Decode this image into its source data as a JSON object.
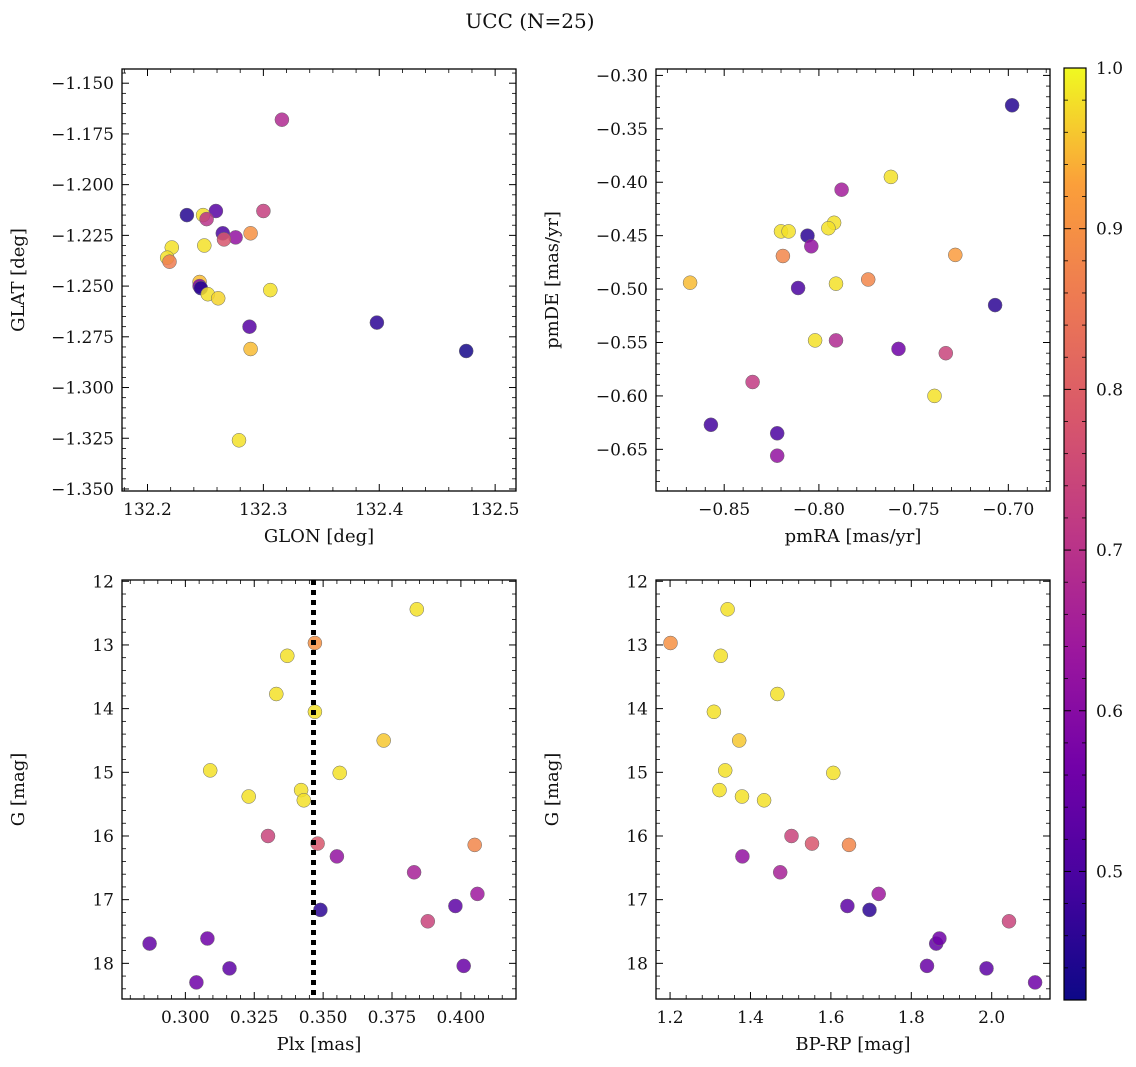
{
  "figure": {
    "title": "UCC (N=25)"
  },
  "colorbar": {
    "min": 0.42,
    "max": 1.0,
    "ticks": [
      0.5,
      0.6,
      0.7,
      0.8,
      0.9,
      1.0
    ],
    "tick_labels": [
      "0.5",
      "0.6",
      "0.7",
      "0.8",
      "0.9",
      "1.0"
    ],
    "colormap": "plasma"
  },
  "chart_data": [
    {
      "type": "scatter",
      "panel": "top-left",
      "xlabel": "GLON [deg]",
      "ylabel": "GLAT [deg]",
      "xlim": [
        132.178,
        132.518
      ],
      "ylim": [
        -1.351,
        -1.143
      ],
      "xticks": [
        132.2,
        132.3,
        132.4,
        132.5
      ],
      "xtick_labels": [
        "132.2",
        "132.3",
        "132.4",
        "132.5"
      ],
      "yticks": [
        -1.15,
        -1.175,
        -1.2,
        -1.225,
        -1.25,
        -1.275,
        -1.3,
        -1.325,
        -1.35
      ],
      "ytick_labels": [
        "−1.150",
        "−1.175",
        "−1.200",
        "−1.225",
        "−1.250",
        "−1.275",
        "−1.300",
        "−1.325",
        "−1.350"
      ],
      "points": [
        {
          "x": 132.316,
          "y": -1.168,
          "c": 0.68
        },
        {
          "x": 132.234,
          "y": -1.215,
          "c": 0.45
        },
        {
          "x": 132.259,
          "y": -1.213,
          "c": 0.52
        },
        {
          "x": 132.3,
          "y": -1.213,
          "c": 0.73
        },
        {
          "x": 132.248,
          "y": -1.215,
          "c": 0.98
        },
        {
          "x": 132.251,
          "y": -1.217,
          "c": 0.7
        },
        {
          "x": 132.265,
          "y": -1.224,
          "c": 0.5
        },
        {
          "x": 132.289,
          "y": -1.224,
          "c": 0.9
        },
        {
          "x": 132.276,
          "y": -1.226,
          "c": 0.62
        },
        {
          "x": 132.266,
          "y": -1.227,
          "c": 0.78
        },
        {
          "x": 132.221,
          "y": -1.231,
          "c": 0.98
        },
        {
          "x": 132.249,
          "y": -1.23,
          "c": 0.98
        },
        {
          "x": 132.217,
          "y": -1.236,
          "c": 0.98
        },
        {
          "x": 132.219,
          "y": -1.238,
          "c": 0.86
        },
        {
          "x": 132.245,
          "y": -1.248,
          "c": 0.95
        },
        {
          "x": 132.245,
          "y": -1.25,
          "c": 0.58
        },
        {
          "x": 132.246,
          "y": -1.251,
          "c": 0.45
        },
        {
          "x": 132.306,
          "y": -1.252,
          "c": 0.98
        },
        {
          "x": 132.252,
          "y": -1.254,
          "c": 0.98
        },
        {
          "x": 132.261,
          "y": -1.256,
          "c": 0.97
        },
        {
          "x": 132.288,
          "y": -1.27,
          "c": 0.52
        },
        {
          "x": 132.398,
          "y": -1.268,
          "c": 0.46
        },
        {
          "x": 132.475,
          "y": -1.282,
          "c": 0.43
        },
        {
          "x": 132.289,
          "y": -1.281,
          "c": 0.95
        },
        {
          "x": 132.279,
          "y": -1.326,
          "c": 0.98
        }
      ]
    },
    {
      "type": "scatter",
      "panel": "top-right",
      "xlabel": "pmRA [mas/yr]",
      "ylabel": "pmDE [mas/yr]",
      "xlim": [
        -0.886,
        -0.678
      ],
      "ylim": [
        -0.689,
        -0.294
      ],
      "xticks": [
        -0.85,
        -0.8,
        -0.75,
        -0.7
      ],
      "xtick_labels": [
        "−0.85",
        "−0.80",
        "−0.75",
        "−0.70"
      ],
      "yticks": [
        -0.3,
        -0.35,
        -0.4,
        -0.45,
        -0.5,
        -0.55,
        -0.6,
        -0.65
      ],
      "ytick_labels": [
        "−0.30",
        "−0.35",
        "−0.40",
        "−0.45",
        "−0.50",
        "−0.55",
        "−0.60",
        "−0.65"
      ],
      "points": [
        {
          "x": -0.698,
          "y": -0.328,
          "c": 0.45
        },
        {
          "x": -0.762,
          "y": -0.395,
          "c": 0.98
        },
        {
          "x": -0.788,
          "y": -0.407,
          "c": 0.65
        },
        {
          "x": -0.82,
          "y": -0.446,
          "c": 0.98
        },
        {
          "x": -0.816,
          "y": -0.446,
          "c": 0.98
        },
        {
          "x": -0.792,
          "y": -0.438,
          "c": 0.98
        },
        {
          "x": -0.795,
          "y": -0.443,
          "c": 0.98
        },
        {
          "x": -0.806,
          "y": -0.45,
          "c": 0.46
        },
        {
          "x": -0.804,
          "y": -0.46,
          "c": 0.62
        },
        {
          "x": -0.819,
          "y": -0.469,
          "c": 0.88
        },
        {
          "x": -0.728,
          "y": -0.468,
          "c": 0.92
        },
        {
          "x": -0.774,
          "y": -0.491,
          "c": 0.88
        },
        {
          "x": -0.868,
          "y": -0.494,
          "c": 0.95
        },
        {
          "x": -0.791,
          "y": -0.495,
          "c": 0.98
        },
        {
          "x": -0.811,
          "y": -0.499,
          "c": 0.5
        },
        {
          "x": -0.707,
          "y": -0.515,
          "c": 0.46
        },
        {
          "x": -0.802,
          "y": -0.548,
          "c": 0.98
        },
        {
          "x": -0.791,
          "y": -0.548,
          "c": 0.68
        },
        {
          "x": -0.758,
          "y": -0.556,
          "c": 0.56
        },
        {
          "x": -0.733,
          "y": -0.56,
          "c": 0.74
        },
        {
          "x": -0.835,
          "y": -0.587,
          "c": 0.72
        },
        {
          "x": -0.739,
          "y": -0.6,
          "c": 0.98
        },
        {
          "x": -0.857,
          "y": -0.627,
          "c": 0.49
        },
        {
          "x": -0.822,
          "y": -0.635,
          "c": 0.5
        },
        {
          "x": -0.822,
          "y": -0.656,
          "c": 0.62
        }
      ]
    },
    {
      "type": "scatter",
      "panel": "bottom-left",
      "xlabel": "Plx [mas]",
      "ylabel": "G [mag]",
      "xlim": [
        0.277,
        0.42
      ],
      "ylim": [
        18.56,
        11.98
      ],
      "y_inverted": true,
      "xticks": [
        0.275,
        0.3,
        0.325,
        0.35,
        0.375,
        0.4
      ],
      "xtick_labels": [
        "0.275",
        "0.300",
        "0.325",
        "0.350",
        "0.375",
        "0.400"
      ],
      "yticks": [
        12,
        13,
        14,
        15,
        16,
        17,
        18
      ],
      "ytick_labels": [
        "12",
        "13",
        "14",
        "15",
        "16",
        "17",
        "18"
      ],
      "vline": {
        "x": 0.3465,
        "style": "dotted"
      },
      "points": [
        {
          "x": 0.384,
          "y": 12.44,
          "c": 0.98
        },
        {
          "x": 0.347,
          "y": 12.97,
          "c": 0.9
        },
        {
          "x": 0.337,
          "y": 13.17,
          "c": 0.98
        },
        {
          "x": 0.333,
          "y": 13.77,
          "c": 0.98
        },
        {
          "x": 0.347,
          "y": 14.05,
          "c": 0.98
        },
        {
          "x": 0.372,
          "y": 14.5,
          "c": 0.96
        },
        {
          "x": 0.309,
          "y": 14.97,
          "c": 0.98
        },
        {
          "x": 0.356,
          "y": 15.01,
          "c": 0.98
        },
        {
          "x": 0.342,
          "y": 15.28,
          "c": 0.98
        },
        {
          "x": 0.323,
          "y": 15.38,
          "c": 0.98
        },
        {
          "x": 0.343,
          "y": 15.44,
          "c": 0.98
        },
        {
          "x": 0.33,
          "y": 16.0,
          "c": 0.74
        },
        {
          "x": 0.348,
          "y": 16.12,
          "c": 0.78
        },
        {
          "x": 0.405,
          "y": 16.14,
          "c": 0.88
        },
        {
          "x": 0.355,
          "y": 16.32,
          "c": 0.62
        },
        {
          "x": 0.383,
          "y": 16.57,
          "c": 0.66
        },
        {
          "x": 0.398,
          "y": 17.1,
          "c": 0.53
        },
        {
          "x": 0.406,
          "y": 16.91,
          "c": 0.64
        },
        {
          "x": 0.388,
          "y": 17.34,
          "c": 0.74
        },
        {
          "x": 0.349,
          "y": 17.16,
          "c": 0.46
        },
        {
          "x": 0.287,
          "y": 17.69,
          "c": 0.54
        },
        {
          "x": 0.308,
          "y": 17.61,
          "c": 0.56
        },
        {
          "x": 0.316,
          "y": 18.08,
          "c": 0.53
        },
        {
          "x": 0.401,
          "y": 18.04,
          "c": 0.55
        },
        {
          "x": 0.304,
          "y": 18.3,
          "c": 0.56
        }
      ]
    },
    {
      "type": "scatter",
      "panel": "bottom-right",
      "xlabel": "BP-RP [mag]",
      "ylabel": "G [mag]",
      "xlim": [
        1.165,
        2.145
      ],
      "ylim": [
        18.56,
        11.98
      ],
      "y_inverted": true,
      "xticks": [
        1.2,
        1.4,
        1.6,
        1.8,
        2.0
      ],
      "xtick_labels": [
        "1.2",
        "1.4",
        "1.6",
        "1.8",
        "2.0"
      ],
      "yticks": [
        12,
        13,
        14,
        15,
        16,
        17,
        18
      ],
      "ytick_labels": [
        "12",
        "13",
        "14",
        "15",
        "16",
        "17",
        "18"
      ],
      "points": [
        {
          "x": 1.343,
          "y": 12.44,
          "c": 0.98
        },
        {
          "x": 1.201,
          "y": 12.97,
          "c": 0.9
        },
        {
          "x": 1.326,
          "y": 13.17,
          "c": 0.98
        },
        {
          "x": 1.467,
          "y": 13.77,
          "c": 0.98
        },
        {
          "x": 1.309,
          "y": 14.05,
          "c": 0.98
        },
        {
          "x": 1.372,
          "y": 14.5,
          "c": 0.96
        },
        {
          "x": 1.337,
          "y": 14.97,
          "c": 0.98
        },
        {
          "x": 1.606,
          "y": 15.01,
          "c": 0.98
        },
        {
          "x": 1.323,
          "y": 15.28,
          "c": 0.98
        },
        {
          "x": 1.379,
          "y": 15.38,
          "c": 0.98
        },
        {
          "x": 1.434,
          "y": 15.44,
          "c": 0.98
        },
        {
          "x": 1.502,
          "y": 16.0,
          "c": 0.74
        },
        {
          "x": 1.553,
          "y": 16.12,
          "c": 0.78
        },
        {
          "x": 1.645,
          "y": 16.14,
          "c": 0.88
        },
        {
          "x": 1.38,
          "y": 16.32,
          "c": 0.62
        },
        {
          "x": 1.474,
          "y": 16.57,
          "c": 0.66
        },
        {
          "x": 1.641,
          "y": 17.1,
          "c": 0.53
        },
        {
          "x": 1.719,
          "y": 16.91,
          "c": 0.64
        },
        {
          "x": 2.043,
          "y": 17.34,
          "c": 0.74
        },
        {
          "x": 1.696,
          "y": 17.16,
          "c": 0.46
        },
        {
          "x": 1.862,
          "y": 17.69,
          "c": 0.54
        },
        {
          "x": 1.87,
          "y": 17.61,
          "c": 0.56
        },
        {
          "x": 1.987,
          "y": 18.08,
          "c": 0.53
        },
        {
          "x": 1.839,
          "y": 18.04,
          "c": 0.55
        },
        {
          "x": 2.108,
          "y": 18.3,
          "c": 0.56
        }
      ]
    }
  ]
}
